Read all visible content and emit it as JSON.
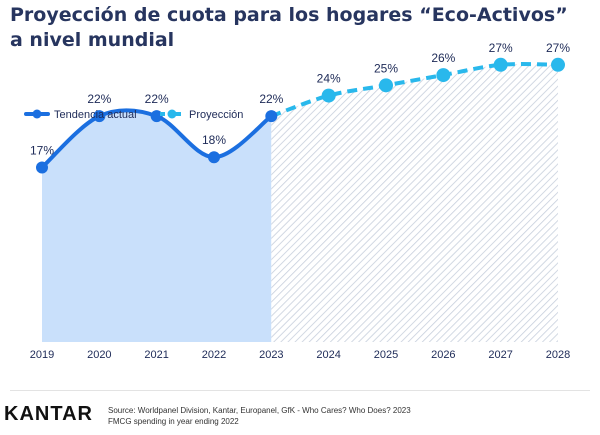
{
  "title": {
    "line1": "Proyección de cuota para los hogares “Eco-Activos”",
    "line2": "a nivel mundial"
  },
  "legend": {
    "actual": "Tendencia actual",
    "projection": "Proyección"
  },
  "colors": {
    "actual_line": "#1b6fe0",
    "actual_fill": "#c9e0fb",
    "projection_line": "#29b8ec",
    "projection_hatch": "#c7cfdc",
    "text": "#1d2a57"
  },
  "chart_data": {
    "type": "line",
    "x": [
      "2019",
      "2020",
      "2021",
      "2022",
      "2023",
      "2024",
      "2025",
      "2026",
      "2027",
      "2028"
    ],
    "ylim": [
      0,
      30
    ],
    "grid": false,
    "legend_position": "top-left",
    "series": [
      {
        "name": "Tendencia actual",
        "style": "solid-area",
        "x": [
          "2019",
          "2020",
          "2021",
          "2022",
          "2023"
        ],
        "values": [
          17,
          22,
          22,
          18,
          22
        ],
        "labels": [
          "17%",
          "22%",
          "22%",
          "18%",
          "22%"
        ]
      },
      {
        "name": "Proyección",
        "style": "dashed-hatched-area",
        "x": [
          "2023",
          "2024",
          "2025",
          "2026",
          "2027",
          "2028"
        ],
        "values": [
          22,
          24,
          25,
          26,
          27,
          27
        ],
        "labels": [
          "",
          "24%",
          "25%",
          "26%",
          "27%",
          "27%"
        ]
      }
    ]
  },
  "footer": {
    "brand": "KANTAR",
    "source_line1": "Source: Worldpanel Division, Kantar, Europanel, GfK - Who Cares? Who Does? 2023",
    "source_line2": "FMCG spending in year ending 2022"
  }
}
